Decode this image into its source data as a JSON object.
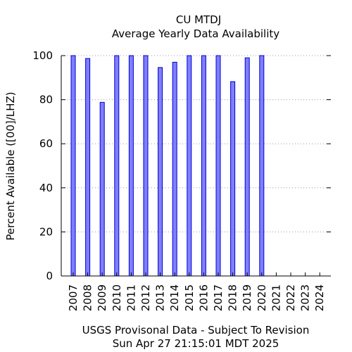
{
  "chart_data": {
    "type": "bar",
    "title": "CU MTDJ",
    "subtitle": "Average Yearly Data Availability",
    "ylabel": "Percent Available ([00]/LHZ)",
    "xlabel": "",
    "footer": [
      "USGS Provisonal Data - Subject To Revision",
      "Sun Apr 27 21:15:01 MDT 2025"
    ],
    "categories": [
      "2007",
      "2008",
      "2009",
      "2010",
      "2011",
      "2012",
      "2013",
      "2014",
      "2015",
      "2016",
      "2017",
      "2018",
      "2019",
      "2020",
      "2021",
      "2022",
      "2023",
      "2024"
    ],
    "values": [
      100,
      98.7,
      78.8,
      100,
      100,
      100,
      94.6,
      97,
      100,
      100,
      100,
      88.2,
      99,
      100,
      null,
      null,
      null,
      null
    ],
    "ylim": [
      0,
      100
    ],
    "yticks": [
      0,
      20,
      40,
      60,
      80,
      100
    ],
    "grid": true,
    "legend": "none",
    "colors": {
      "bar_fill": "#7f7fff",
      "bar_stroke": "#0000cc",
      "grid": "#999999"
    }
  }
}
